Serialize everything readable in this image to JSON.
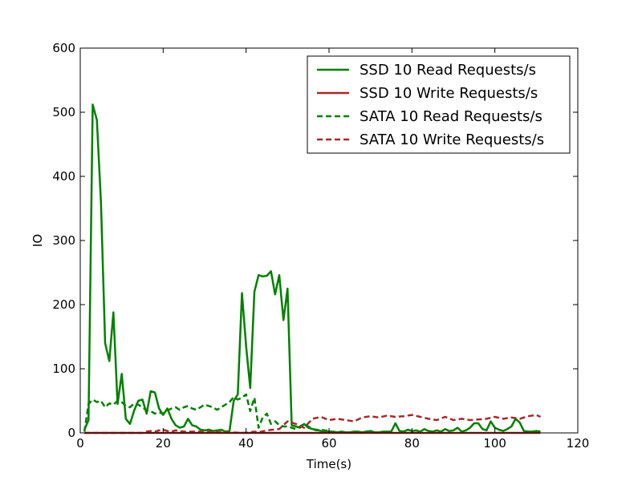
{
  "chart_data": {
    "type": "line",
    "title": "",
    "xlabel": "Time(s)",
    "ylabel": "IO",
    "xlim": [
      0,
      120
    ],
    "ylim": [
      0,
      600
    ],
    "xticks": [
      0,
      20,
      40,
      60,
      80,
      100,
      120
    ],
    "yticks": [
      0,
      100,
      200,
      300,
      400,
      500,
      600
    ],
    "grid": false,
    "legend_position": "top-right",
    "series": [
      {
        "name": "SSD 10 Read Requests/s",
        "color": "#008000",
        "style": "solid",
        "x": [
          1,
          2,
          3,
          4,
          5,
          6,
          7,
          8,
          9,
          10,
          11,
          12,
          13,
          14,
          15,
          16,
          17,
          18,
          19,
          20,
          21,
          22,
          23,
          24,
          25,
          26,
          27,
          28,
          29,
          30,
          31,
          32,
          33,
          34,
          35,
          36,
          37,
          38,
          39,
          40,
          41,
          42,
          43,
          44,
          45,
          46,
          47,
          48,
          49,
          50,
          51,
          52,
          53,
          54,
          55,
          56,
          57,
          58,
          59,
          60,
          61,
          62,
          63,
          64,
          65,
          66,
          67,
          68,
          69,
          70,
          71,
          72,
          73,
          74,
          75,
          76,
          77,
          78,
          79,
          80,
          81,
          82,
          83,
          84,
          85,
          86,
          87,
          88,
          89,
          90,
          91,
          92,
          93,
          94,
          95,
          96,
          97,
          98,
          99,
          100,
          101,
          102,
          103,
          104,
          105,
          106,
          107,
          108,
          109,
          110,
          111
        ],
        "values": [
          5,
          20,
          512,
          488,
          360,
          140,
          112,
          188,
          45,
          92,
          22,
          14,
          35,
          50,
          52,
          30,
          65,
          63,
          38,
          28,
          38,
          22,
          12,
          8,
          10,
          22,
          12,
          10,
          5,
          4,
          5,
          3,
          4,
          5,
          2,
          3,
          50,
          60,
          218,
          135,
          70,
          220,
          246,
          244,
          245,
          252,
          216,
          246,
          176,
          225,
          12,
          10,
          8,
          14,
          8,
          6,
          5,
          3,
          2,
          2,
          2,
          1,
          2,
          1,
          1,
          2,
          2,
          1,
          2,
          3,
          1,
          1,
          2,
          2,
          2,
          15,
          3,
          2,
          5,
          3,
          4,
          2,
          6,
          3,
          2,
          4,
          2,
          6,
          3,
          4,
          8,
          2,
          4,
          8,
          15,
          15,
          6,
          4,
          18,
          8,
          5,
          3,
          6,
          10,
          22,
          16,
          3,
          2,
          2,
          3,
          2
        ],
        "color_hex": "#008000"
      },
      {
        "name": "SSD 10 Write Requests/s",
        "color": "#a52a2a",
        "style": "solid",
        "x": [
          1,
          5,
          10,
          15,
          20,
          25,
          30,
          35,
          40,
          45,
          50,
          55,
          60,
          65,
          70,
          75,
          80,
          85,
          90,
          95,
          100,
          105,
          110,
          111
        ],
        "values": [
          0,
          0,
          0,
          0,
          0,
          0,
          0,
          0,
          0,
          0,
          0,
          0,
          0,
          0,
          0,
          0,
          0,
          0,
          0,
          0,
          0,
          0,
          0,
          0
        ]
      },
      {
        "name": "SATA 10 Read Requests/s",
        "color": "#008000",
        "style": "dashed",
        "x": [
          1,
          2,
          3,
          4,
          5,
          6,
          7,
          8,
          9,
          10,
          11,
          12,
          13,
          14,
          15,
          16,
          17,
          18,
          19,
          20,
          21,
          22,
          23,
          24,
          25,
          26,
          27,
          28,
          29,
          30,
          31,
          32,
          33,
          34,
          35,
          36,
          37,
          38,
          39,
          40,
          41,
          42,
          43,
          44,
          45,
          46,
          47,
          48,
          49,
          50,
          51,
          52,
          53,
          54,
          55,
          56,
          57,
          58,
          59,
          60
        ],
        "values": [
          2,
          45,
          52,
          48,
          50,
          40,
          46,
          44,
          50,
          48,
          42,
          40,
          46,
          44,
          40,
          35,
          34,
          30,
          32,
          30,
          35,
          38,
          40,
          36,
          40,
          42,
          38,
          36,
          40,
          44,
          42,
          40,
          36,
          40,
          44,
          48,
          56,
          52,
          55,
          60,
          34,
          55,
          8,
          24,
          30,
          14,
          18,
          12,
          10,
          10,
          8,
          6,
          10,
          14,
          10,
          6,
          4,
          5,
          4,
          3
        ]
      },
      {
        "name": "SATA 10 Write Requests/s",
        "color": "#a52a2a",
        "style": "dashed",
        "x": [
          1,
          5,
          10,
          15,
          16,
          17,
          18,
          19,
          20,
          21,
          22,
          23,
          24,
          25,
          30,
          35,
          40,
          42,
          43,
          45,
          48,
          50,
          52,
          54,
          56,
          58,
          60,
          62,
          64,
          66,
          68,
          70,
          72,
          74,
          76,
          78,
          80,
          82,
          84,
          86,
          88,
          90,
          92,
          94,
          96,
          98,
          100,
          102,
          104,
          106,
          108,
          110,
          111
        ],
        "values": [
          0,
          0,
          0,
          0,
          2,
          3,
          2,
          4,
          5,
          3,
          2,
          4,
          3,
          2,
          2,
          1,
          0,
          2,
          1,
          4,
          6,
          18,
          14,
          8,
          22,
          25,
          20,
          22,
          20,
          18,
          24,
          26,
          24,
          27,
          25,
          26,
          28,
          25,
          22,
          20,
          25,
          20,
          22,
          20,
          21,
          22,
          25,
          22,
          24,
          22,
          26,
          28,
          25
        ]
      }
    ]
  }
}
